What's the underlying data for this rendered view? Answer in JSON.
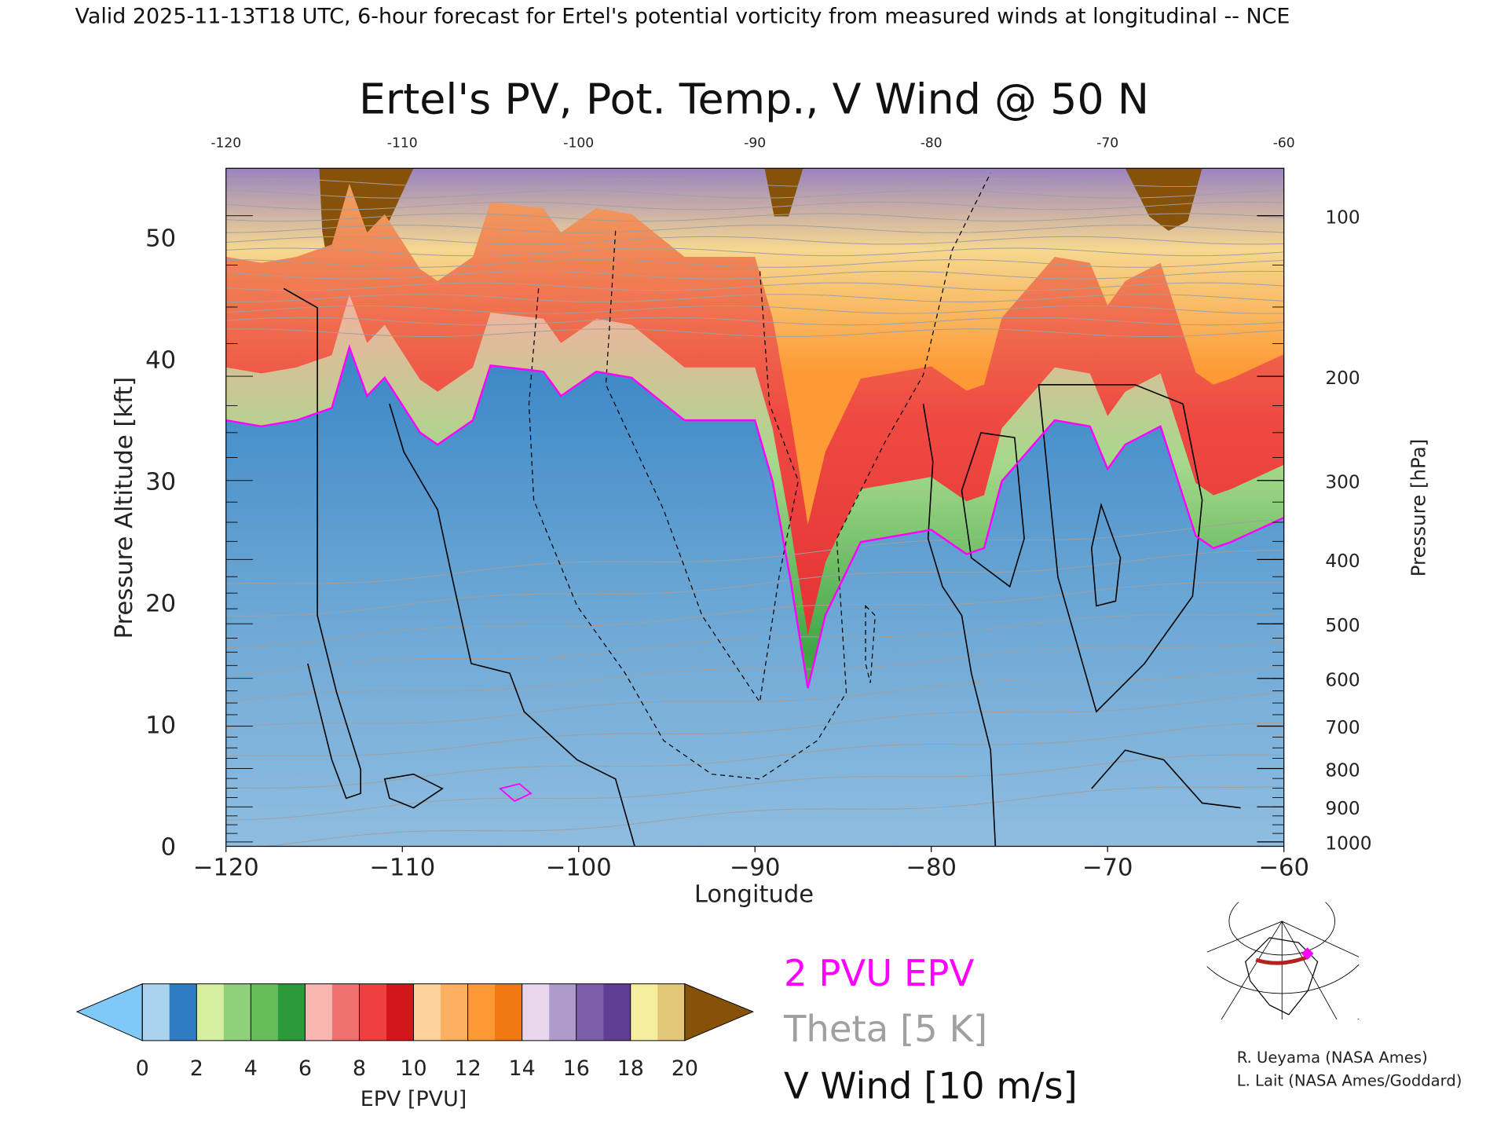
{
  "header": "Valid 2025-11-13T18 UTC, 6-hour forecast for Ertel's potential vorticity from measured winds at longitudinal -- NCE",
  "chart_data": {
    "type": "heatmap",
    "title": "Ertel's PV, Pot. Temp., V Wind @ 50 N",
    "xlabel": "Longitude",
    "ylabel": "Pressure Altitude [kft]",
    "y2label": "Pressure [hPa]",
    "xlim": [
      -120,
      -60
    ],
    "ylim": [
      0,
      55.7
    ],
    "x_ticks": [
      "-120",
      "-110",
      "-100",
      "-90",
      "-80",
      "-70",
      "-60"
    ],
    "x_ticks_top": [
      "-120",
      "-110",
      "-100",
      "-90",
      "-80",
      "-70",
      "-60"
    ],
    "y_ticks": [
      "0",
      "10",
      "20",
      "30",
      "40",
      "50"
    ],
    "y2_ticks": [
      "100",
      "200",
      "300",
      "400",
      "500",
      "600",
      "700",
      "800",
      "900",
      "1000"
    ],
    "two_pvu_boundary_kft": {
      "lon": [
        -120,
        -118,
        -116,
        -114,
        -113,
        -112,
        -111,
        -109,
        -108,
        -106,
        -105,
        -102,
        -101,
        -99,
        -97,
        -94,
        -90,
        -89,
        -88,
        -87,
        -86,
        -84,
        -80,
        -78,
        -77,
        -76,
        -73,
        -71,
        -70,
        -69,
        -67,
        -65,
        -64,
        -63,
        -60
      ],
      "kft": [
        35,
        34.5,
        35,
        36,
        41,
        37,
        38.5,
        34,
        33,
        35,
        39.5,
        39,
        37,
        39,
        38.5,
        35,
        35,
        30,
        22,
        13,
        19,
        25,
        26,
        24,
        24.5,
        30,
        35,
        34.5,
        31,
        33,
        34.5,
        25.5,
        24.5,
        25,
        27
      ]
    },
    "colorbar": {
      "label": "EPV [PVU]",
      "ticks": [
        "0",
        "2",
        "4",
        "6",
        "8",
        "10",
        "12",
        "14",
        "16",
        "18",
        "20"
      ],
      "colors": [
        "#a9d3ee",
        "#2f7cc0",
        "#d6ee9f",
        "#8fd07a",
        "#67bd5a",
        "#2a9a3a",
        "#f9b5b0",
        "#f07070",
        "#ef4040",
        "#d3161b",
        "#fdd19c",
        "#fdb060",
        "#fd9a35",
        "#f27911",
        "#e7d6ec",
        "#ae9acb",
        "#7d5eaa",
        "#5e3f94",
        "#f5ee9e",
        "#e3c779"
      ],
      "under_color": "#7fc8f8",
      "over_color": "#86520a"
    },
    "legend": {
      "epv_line": "2 PVU EPV",
      "theta": "Theta [5 K]",
      "vwind": "V Wind [10 m/s]",
      "epv_color": "#ff00ff",
      "theta_color": "#a0a0a0",
      "vwind_color": "#000000"
    }
  },
  "credits": [
    "R. Ueyama (NASA Ames)",
    "L. Lait (NASA Ames/Goddard)"
  ]
}
